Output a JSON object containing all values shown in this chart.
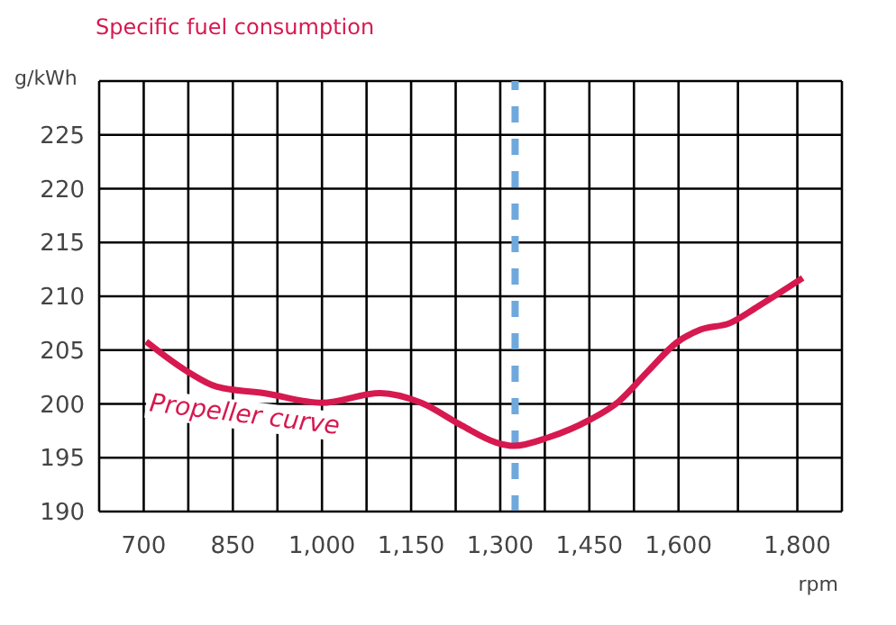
{
  "chart_data": {
    "type": "line",
    "title": "Specific fuel consumption",
    "xlabel": "rpm",
    "ylabel": "g/kWh",
    "x": [
      704,
      774,
      823,
      902,
      1000,
      1098,
      1167,
      1235,
      1294,
      1323,
      1382,
      1450,
      1499,
      1548,
      1597,
      1637,
      1686,
      1735,
      1809
    ],
    "series": [
      {
        "color": "#d6194f",
        "values": [
          205.8,
          203.0,
          201.6,
          201.0,
          200.1,
          201.0,
          200.1,
          198.0,
          196.4,
          196.1,
          196.9,
          198.5,
          200.2,
          203.0,
          205.7,
          206.9,
          207.5,
          209.1,
          211.7
        ]
      }
    ],
    "xlim": [
      625,
      1875
    ],
    "xticks": [
      700,
      {
        "value": 775,
        "label": null
      },
      {
        "value": 850,
        "label": "850"
      },
      {
        "value": 925,
        "label": null
      },
      {
        "value": 1000,
        "label": "1,000"
      },
      {
        "value": 1075,
        "label": null
      },
      {
        "value": 1150,
        "label": "1,150"
      },
      {
        "value": 1225,
        "label": null
      },
      {
        "value": 1300,
        "label": "1,300"
      },
      {
        "value": 1375,
        "label": null
      },
      {
        "value": 1450,
        "label": "1,450"
      },
      {
        "value": 1525,
        "label": null
      },
      {
        "value": 1600,
        "label": "1,600"
      },
      {
        "value": 1700,
        "label": null
      },
      {
        "value": 1800,
        "label": "1,800"
      },
      {
        "value": 1875,
        "label": null
      }
    ],
    "ylim": [
      190,
      230
    ],
    "yticks": [
      190,
      195,
      200,
      205,
      210,
      215,
      220,
      225,
      {
        "value": 230,
        "label": null
      }
    ],
    "grid": true,
    "ref_lines": [
      {
        "axis": "x",
        "value": 1325,
        "color": "#6fa8dc",
        "line_style": "dashed"
      }
    ],
    "annotations": [
      "Propeller curve"
    ]
  }
}
